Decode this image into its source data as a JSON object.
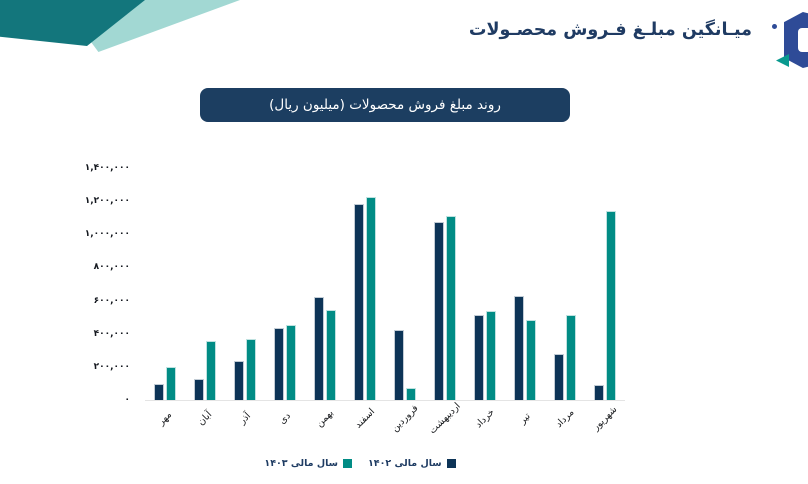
{
  "header": {
    "title": "میـانگین مبلـغ فـروش محصـولات"
  },
  "chart": {
    "title": "روند مبلغ فروش محصولات (میلیون ریال)"
  },
  "chart_data": {
    "type": "bar",
    "direction": "rtl",
    "title": "روند مبلغ فروش محصولات (میلیون ریال)",
    "categories": [
      "مهر",
      "آبان",
      "آذر",
      "دی",
      "بهمن",
      "اسفند",
      "فروردین",
      "اردیبهشت",
      "خرداد",
      "تیر",
      "مرداد",
      "شهریور"
    ],
    "series": [
      {
        "name": "سال مالی ۱۴۰۲",
        "color": "#0d3457",
        "values": [
          95000,
          125000,
          235000,
          435000,
          620000,
          1185000,
          425000,
          1075000,
          515000,
          630000,
          280000,
          90000
        ]
      },
      {
        "name": "سال مالی ۱۴۰۳",
        "color": "#018c85",
        "values": [
          200000,
          355000,
          370000,
          455000,
          545000,
          1225000,
          70000,
          1110000,
          540000,
          485000,
          515000,
          1140000
        ]
      }
    ],
    "ylim": [
      0,
      1400000
    ],
    "ytick_step": 200000,
    "ytick_labels_top_to_bottom": [
      "۱,۴۰۰,۰۰۰",
      "۱,۲۰۰,۰۰۰",
      "۱,۰۰۰,۰۰۰",
      "۸۰۰,۰۰۰",
      "۶۰۰,۰۰۰",
      "۴۰۰,۰۰۰",
      "۲۰۰,۰۰۰",
      "۰"
    ],
    "grid": false,
    "legend_position": "bottom"
  },
  "colors": {
    "bar_fy1402": "#0d3457",
    "bar_fy1403": "#018c85",
    "title_pill_bg": "#1c3e61",
    "header_text": "#1f3b63",
    "deco_dark_teal": "#13767c",
    "deco_light_teal": "#a2d8d3",
    "logo_blue": "#2e4b97",
    "axis_line": "#e4e4e4"
  }
}
